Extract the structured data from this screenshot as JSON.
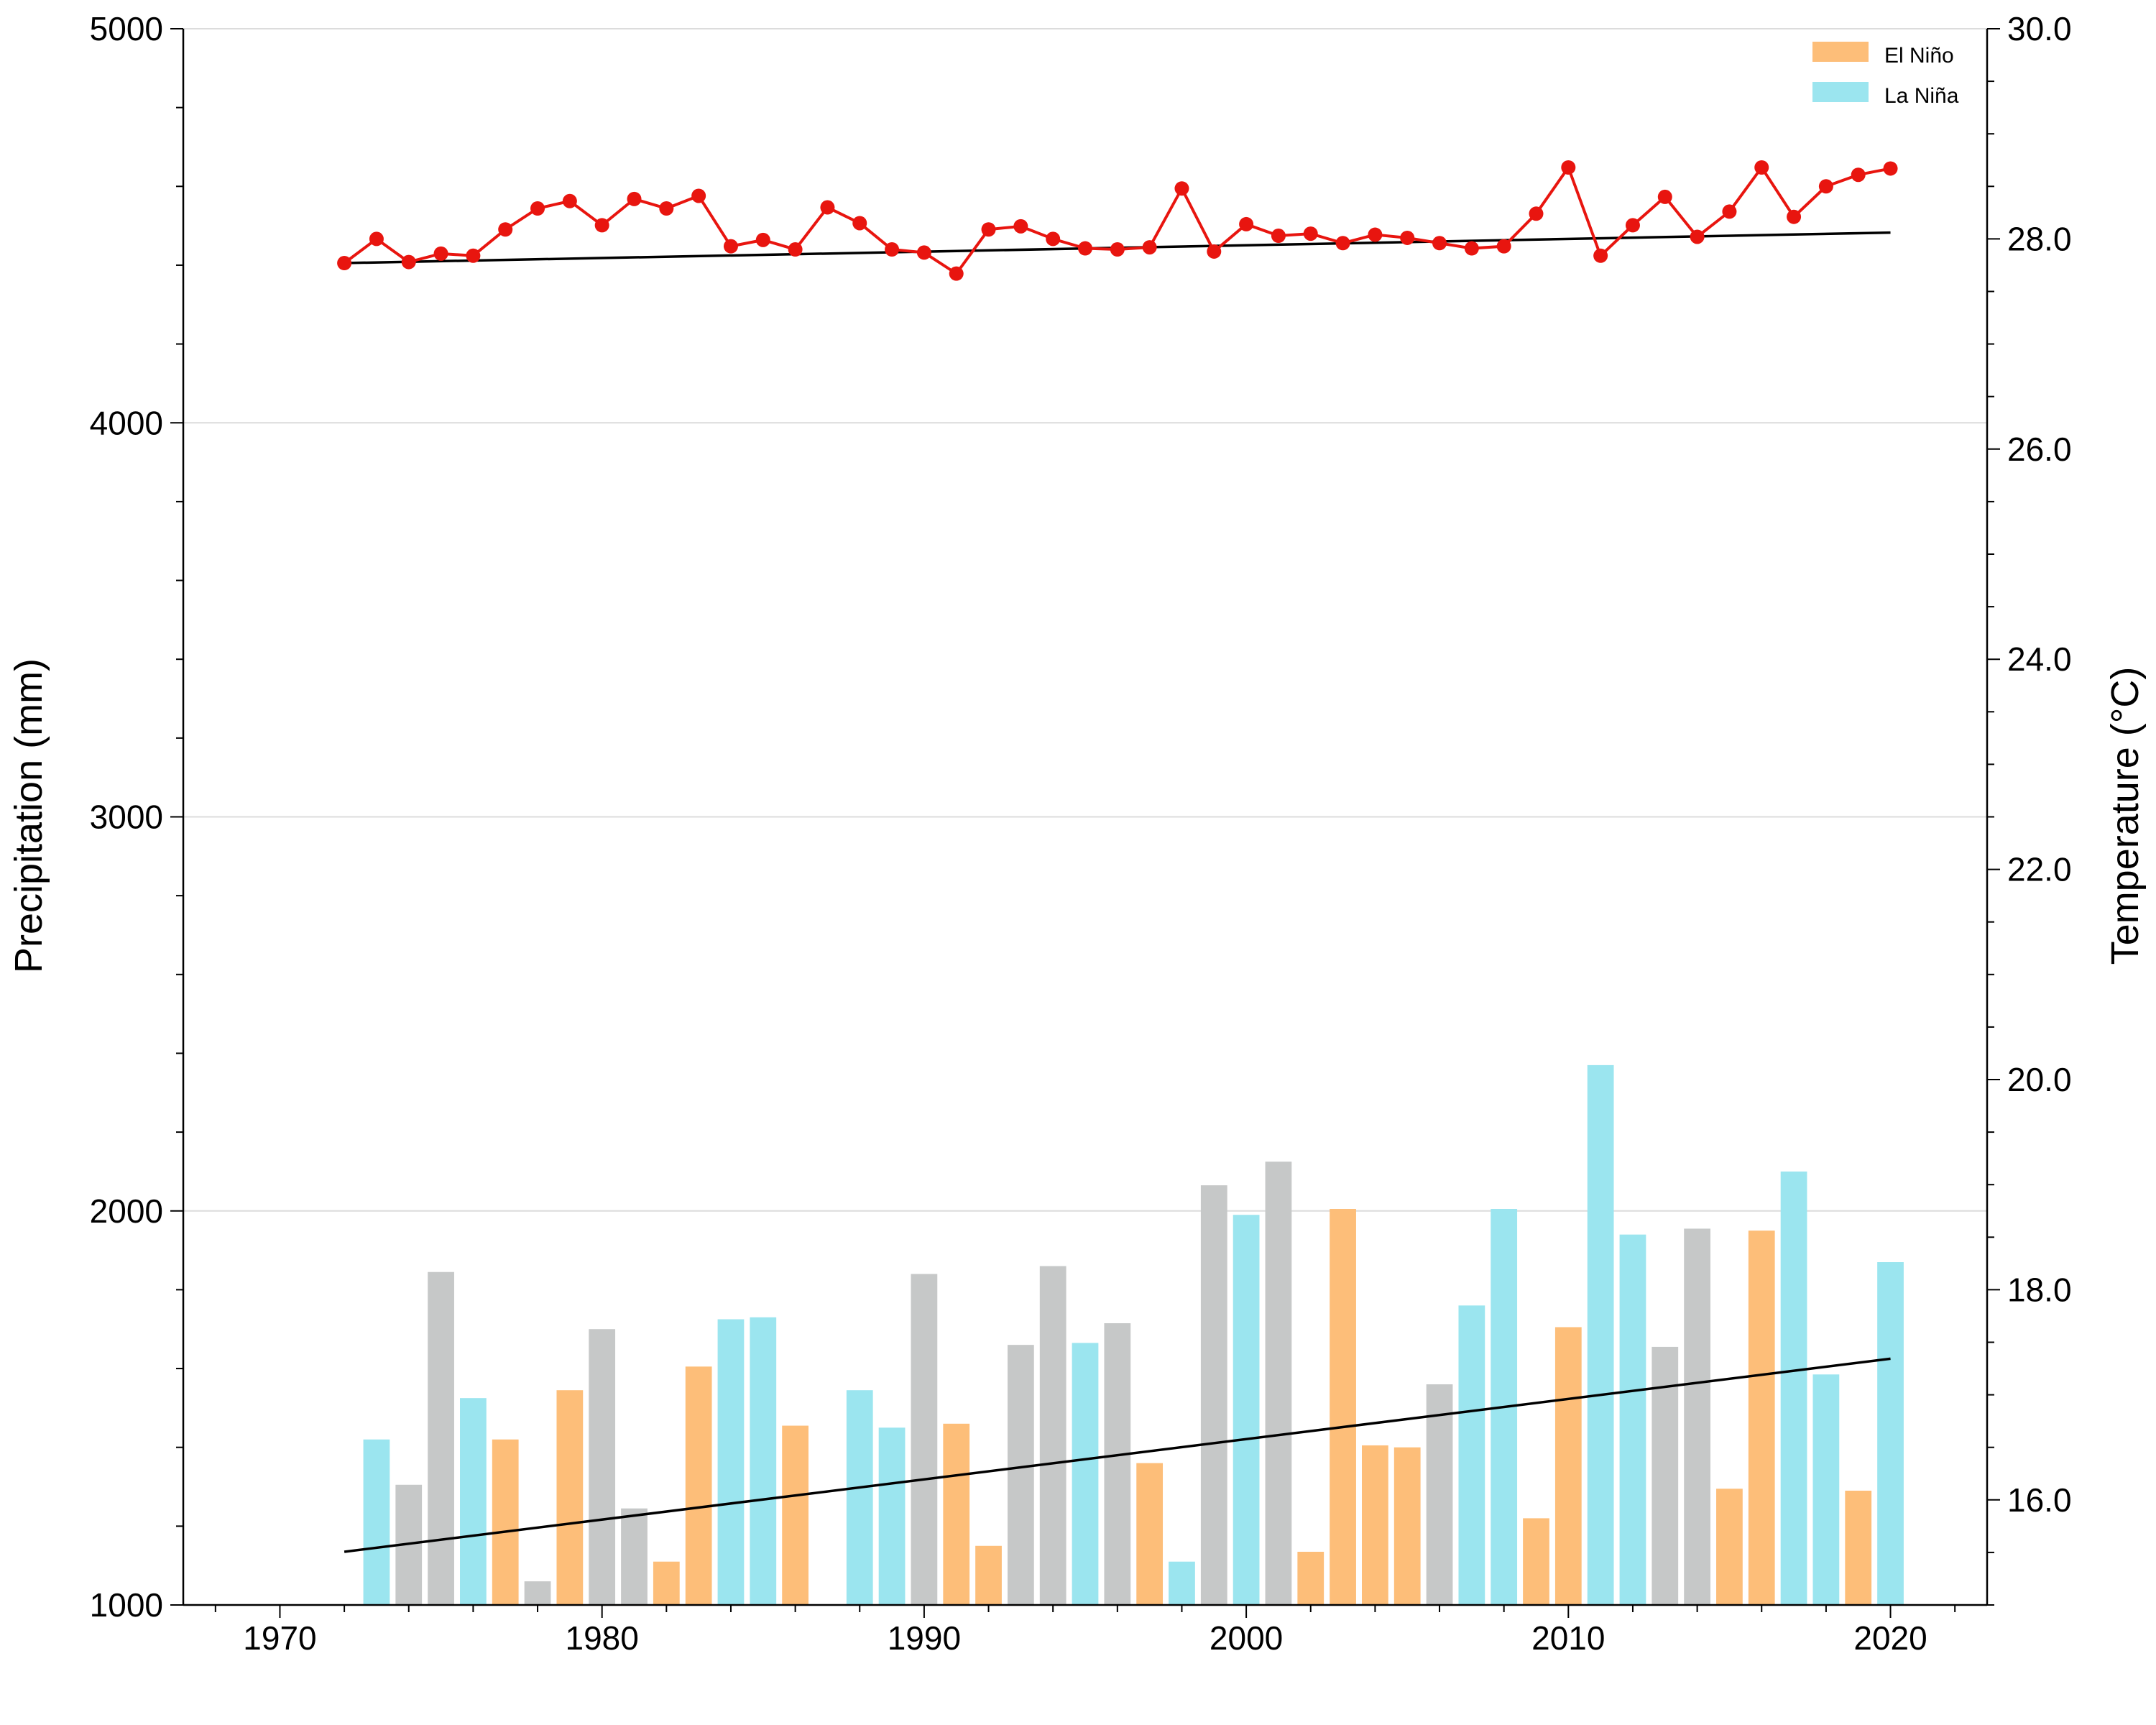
{
  "chart_data": {
    "type": "bar",
    "title": "",
    "xlabel": "",
    "ylabel": "Precipitation (mm)",
    "y2label": "Temperature (°C)",
    "xlim": [
      1967,
      2023
    ],
    "ylim": [
      1000,
      5000
    ],
    "y2lim": [
      15.0,
      30.0
    ],
    "x_ticks": [
      1970,
      1980,
      1990,
      2000,
      2010,
      2020
    ],
    "y_ticks": [
      1000,
      2000,
      3000,
      4000,
      5000
    ],
    "y2_ticks": [
      "16.0",
      "18.0",
      "20.0",
      "22.0",
      "24.0",
      "26.0",
      "28.0",
      "30.0"
    ],
    "grid": "horizontal at left-axis major ticks",
    "legend": {
      "placement": "top-right",
      "entries": [
        {
          "label": "El Niño",
          "color": "#fdbe79"
        },
        {
          "label": "La Niña",
          "color": "#9be5ef"
        }
      ]
    },
    "colors": {
      "el_nino": "#fdbe79",
      "la_nina": "#9be5ef",
      "neutral": "#c6c8c8",
      "temperature_line": "#e8150f",
      "trend_line": "#000000"
    },
    "precipitation": {
      "years": [
        1973,
        1974,
        1975,
        1976,
        1977,
        1978,
        1979,
        1980,
        1981,
        1982,
        1983,
        1984,
        1985,
        1986,
        1987,
        1988,
        1989,
        1990,
        1991,
        1992,
        1993,
        1994,
        1995,
        1996,
        1997,
        1998,
        1999,
        2000,
        2001,
        2002,
        2003,
        2004,
        2005,
        2006,
        2007,
        2008,
        2009,
        2010,
        2011,
        2012,
        2013,
        2014,
        2015,
        2016,
        2017,
        2018,
        2019,
        2020
      ],
      "values": [
        1420,
        1305,
        1845,
        1525,
        1420,
        1060,
        1545,
        1700,
        1245,
        1110,
        1605,
        1725,
        1730,
        1455,
        null,
        1545,
        1450,
        1840,
        1460,
        1150,
        1660,
        1860,
        1665,
        1715,
        1360,
        1110,
        2065,
        1990,
        2125,
        1135,
        2005,
        1405,
        1400,
        1560,
        1760,
        2005,
        1220,
        1705,
        2370,
        1940,
        1655,
        1955,
        1295,
        1950,
        2100,
        1585,
        1290,
        1870
      ],
      "phase": [
        "N",
        "O",
        "O",
        "N",
        "E",
        "O",
        "E",
        "O",
        "O",
        "E",
        "E",
        "N",
        "N",
        "E",
        "O",
        "N",
        "N",
        "O",
        "E",
        "E",
        "O",
        "O",
        "N",
        "O",
        "E",
        "N",
        "O",
        "N",
        "O",
        "E",
        "E",
        "E",
        "E",
        "O",
        "N",
        "N",
        "E",
        "E",
        "N",
        "N",
        "O",
        "O",
        "E",
        "E",
        "N",
        "N",
        "E",
        "N"
      ],
      "trend": {
        "x": [
          1972,
          2020
        ],
        "y": [
          1135,
          1625
        ]
      }
    },
    "temperature": {
      "years": [
        1972,
        1973,
        1974,
        1975,
        1976,
        1977,
        1978,
        1979,
        1980,
        1981,
        1982,
        1983,
        1984,
        1985,
        1986,
        1987,
        1988,
        1989,
        1990,
        1991,
        1992,
        1993,
        1994,
        1995,
        1996,
        1997,
        1998,
        1999,
        2000,
        2001,
        2002,
        2003,
        2004,
        2005,
        2006,
        2007,
        2008,
        2009,
        2010,
        2011,
        2012,
        2013,
        2014,
        2015,
        2016,
        2017,
        2018,
        2019,
        2020
      ],
      "values": [
        27.77,
        28.0,
        27.78,
        27.86,
        27.84,
        28.09,
        28.29,
        28.36,
        28.13,
        28.38,
        28.29,
        28.41,
        27.93,
        27.99,
        27.9,
        28.3,
        28.15,
        27.9,
        27.87,
        27.67,
        28.09,
        28.12,
        28.0,
        27.91,
        27.9,
        27.92,
        28.48,
        27.88,
        28.14,
        28.03,
        28.05,
        27.96,
        28.04,
        28.01,
        27.96,
        27.91,
        27.93,
        28.24,
        28.68,
        27.84,
        28.13,
        28.4,
        28.02,
        28.26,
        28.68,
        28.21,
        28.5,
        28.61,
        28.67
      ],
      "trend": {
        "x": [
          1972,
          2020
        ],
        "y": [
          27.77,
          28.06
        ]
      }
    }
  }
}
